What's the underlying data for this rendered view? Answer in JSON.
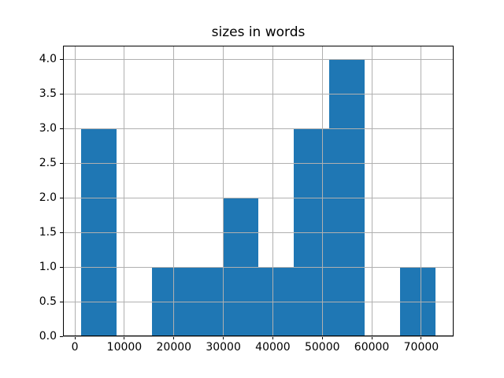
{
  "chart_data": {
    "type": "bar",
    "subtype": "histogram",
    "title": "sizes in words",
    "xlabel": "",
    "ylabel": "",
    "bin_edges": [
      1180,
      8360,
      15530,
      22710,
      29890,
      37070,
      44240,
      51420,
      58600,
      65770,
      72950
    ],
    "counts": [
      3,
      0,
      1,
      1,
      2,
      1,
      3,
      4,
      0,
      1
    ],
    "x_ticks": [
      0,
      10000,
      20000,
      30000,
      40000,
      50000,
      60000,
      70000
    ],
    "x_tick_labels": [
      "0",
      "10000",
      "20000",
      "30000",
      "40000",
      "50000",
      "60000",
      "70000"
    ],
    "y_ticks": [
      0.0,
      0.5,
      1.0,
      1.5,
      2.0,
      2.5,
      3.0,
      3.5,
      4.0
    ],
    "y_tick_labels": [
      "0.0",
      "0.5",
      "1.0",
      "1.5",
      "2.0",
      "2.5",
      "3.0",
      "3.5",
      "4.0"
    ],
    "xlim": [
      -2410,
      76540
    ],
    "ylim": [
      0,
      4.2
    ],
    "grid": true,
    "grid_over_bars": true,
    "legend": "none",
    "colors": {
      "bar": "#1f77b4",
      "grid": "#b0b0b0",
      "spine": "#000000",
      "text": "#000000",
      "background": "#ffffff"
    }
  }
}
